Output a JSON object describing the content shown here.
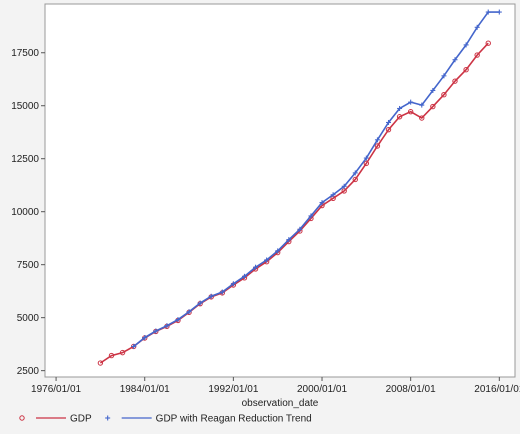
{
  "chart_data": {
    "type": "line",
    "title": "",
    "xlabel": "observation_date",
    "ylabel": "",
    "x_ticks": [
      "1976/01/01",
      "1984/01/01",
      "1992/01/01",
      "2000/01/01",
      "2008/01/01",
      "2016/01/01"
    ],
    "y_ticks": [
      "2500",
      "5000",
      "7500",
      "10000",
      "12500",
      "15000",
      "17500"
    ],
    "xlim": [
      "1975-01-01",
      "2017-06-01"
    ],
    "ylim": [
      2200,
      19800
    ],
    "grid": false,
    "legend_position": "bottom",
    "series": [
      {
        "name": "GDP",
        "color": "#cc3344",
        "marker": "circle",
        "x": [
          "1980-01-01",
          "1981-01-01",
          "1982-01-01",
          "1983-01-01",
          "1984-01-01",
          "1985-01-01",
          "1986-01-01",
          "1987-01-01",
          "1988-01-01",
          "1989-01-01",
          "1990-01-01",
          "1991-01-01",
          "1992-01-01",
          "1993-01-01",
          "1994-01-01",
          "1995-01-01",
          "1996-01-01",
          "1997-01-01",
          "1998-01-01",
          "1999-01-01",
          "2000-01-01",
          "2001-01-01",
          "2002-01-01",
          "2003-01-01",
          "2004-01-01",
          "2005-01-01",
          "2006-01-01",
          "2007-01-01",
          "2008-01-01",
          "2009-01-01",
          "2010-01-01",
          "2011-01-01",
          "2012-01-01",
          "2013-01-01",
          "2014-01-01",
          "2015-01-01"
        ],
        "values": [
          2860,
          3210,
          3350,
          3640,
          4040,
          4350,
          4590,
          4870,
          5250,
          5660,
          5980,
          6170,
          6540,
          6880,
          7300,
          7640,
          8070,
          8590,
          9090,
          9680,
          10290,
          10630,
          10980,
          11520,
          12280,
          13100,
          13870,
          14480,
          14720,
          14420,
          14960,
          15520,
          16160,
          16700,
          17390,
          17950
        ]
      },
      {
        "name": "GDP with Reagan Reduction Trend",
        "color": "#4466cc",
        "marker": "plus",
        "x": [
          "1983-01-01",
          "1984-01-01",
          "1985-01-01",
          "1986-01-01",
          "1987-01-01",
          "1988-01-01",
          "1989-01-01",
          "1990-01-01",
          "1991-01-01",
          "1992-01-01",
          "1993-01-01",
          "1994-01-01",
          "1995-01-01",
          "1996-01-01",
          "1997-01-01",
          "1998-01-01",
          "1999-01-01",
          "2000-01-01",
          "2001-01-01",
          "2002-01-01",
          "2003-01-01",
          "2004-01-01",
          "2005-01-01",
          "2006-01-01",
          "2007-01-01",
          "2008-01-01",
          "2009-01-01",
          "2010-01-01",
          "2011-01-01",
          "2012-01-01",
          "2013-01-01",
          "2014-01-01",
          "2015-01-01",
          "2016-01-01"
        ],
        "values": [
          3640,
          4060,
          4370,
          4620,
          4910,
          5280,
          5690,
          6010,
          6210,
          6600,
          6950,
          7380,
          7720,
          8150,
          8680,
          9170,
          9800,
          10430,
          10800,
          11200,
          11830,
          12530,
          13390,
          14210,
          14870,
          15170,
          15030,
          15720,
          16410,
          17170,
          17870,
          18700,
          19420,
          19420
        ]
      }
    ]
  }
}
